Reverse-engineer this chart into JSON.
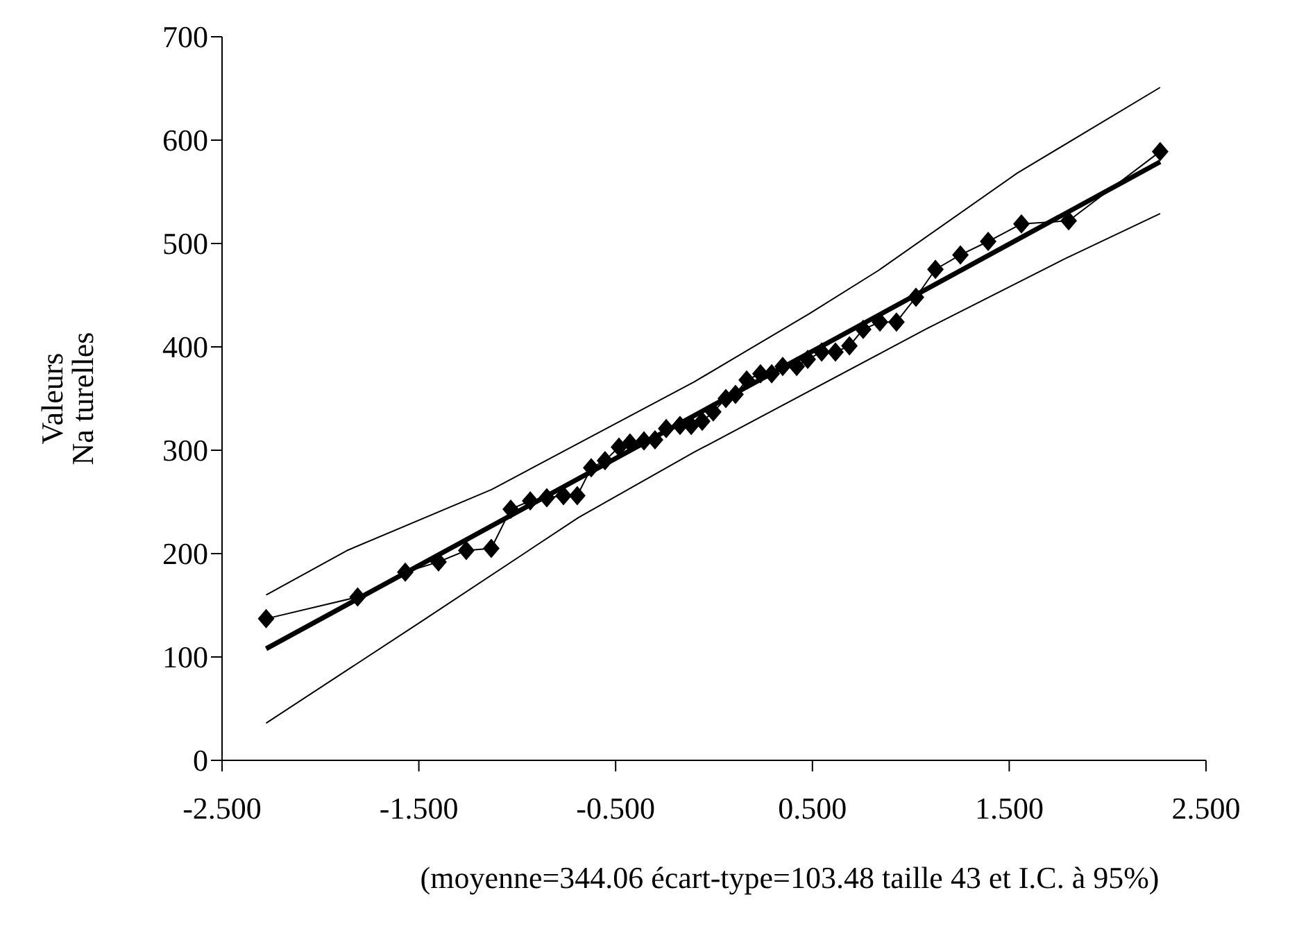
{
  "chart_data": {
    "type": "line",
    "ylabel": "Valeurs\nNa turelles",
    "annotations": [
      "(moyenne=344.06 écart-type=103.48 taille 43 et I.C. à 95%)"
    ],
    "xlim": [
      -2.5,
      2.5
    ],
    "xticks": [
      {
        "value": -2.5,
        "label": "-2.500"
      },
      {
        "value": -1.5,
        "label": "-1.500"
      },
      {
        "value": -0.5,
        "label": "-0.500"
      },
      {
        "value": 0.5,
        "label": "0.500"
      },
      {
        "value": 1.5,
        "label": "1.500"
      },
      {
        "value": 2.5,
        "label": "2.500"
      }
    ],
    "ylim": [
      0,
      700
    ],
    "yticks": [
      0,
      100,
      200,
      300,
      400,
      500,
      600,
      700
    ],
    "grid": false,
    "series": [
      {
        "color": "#000000",
        "marker": "diamond",
        "x": [
          -2.276,
          -1.811,
          -1.569,
          -1.4,
          -1.259,
          -1.132,
          -1.033,
          -0.934,
          -0.85,
          -0.765,
          -0.695,
          -0.624,
          -0.554,
          -0.483,
          -0.427,
          -0.356,
          -0.3,
          -0.243,
          -0.173,
          -0.116,
          -0.06,
          -0.004,
          0.06,
          0.109,
          0.166,
          0.236,
          0.293,
          0.349,
          0.42,
          0.476,
          0.547,
          0.617,
          0.688,
          0.758,
          0.843,
          0.927,
          1.026,
          1.125,
          1.252,
          1.393,
          1.562,
          1.802,
          2.267
        ],
        "values": [
          137,
          158,
          182,
          192,
          203,
          205,
          243,
          251,
          254,
          256,
          256,
          283,
          290,
          303,
          307,
          309,
          310,
          321,
          324,
          324,
          328,
          337,
          350,
          354,
          368,
          374,
          374,
          381,
          381,
          388,
          395,
          395,
          401,
          417,
          424,
          424,
          448,
          475,
          489,
          502,
          519,
          522,
          589
        ]
      },
      {
        "color": "#000000",
        "marker": "none",
        "x": [
          -2.276,
          2.267
        ],
        "values": [
          108,
          579
        ]
      },
      {
        "color": "#000000",
        "marker": "none",
        "x": [
          -2.276,
          -1.865,
          -1.13,
          -0.102,
          0.483,
          0.836,
          1.54,
          2.267
        ],
        "values": [
          160,
          203,
          262,
          366,
          432,
          474,
          568,
          651
        ]
      },
      {
        "color": "#000000",
        "marker": "none",
        "x": [
          -2.276,
          -1.49,
          -0.688,
          -0.102,
          1.075,
          1.78,
          2.267
        ],
        "values": [
          36,
          134,
          235,
          298,
          417,
          485,
          529
        ]
      }
    ]
  }
}
